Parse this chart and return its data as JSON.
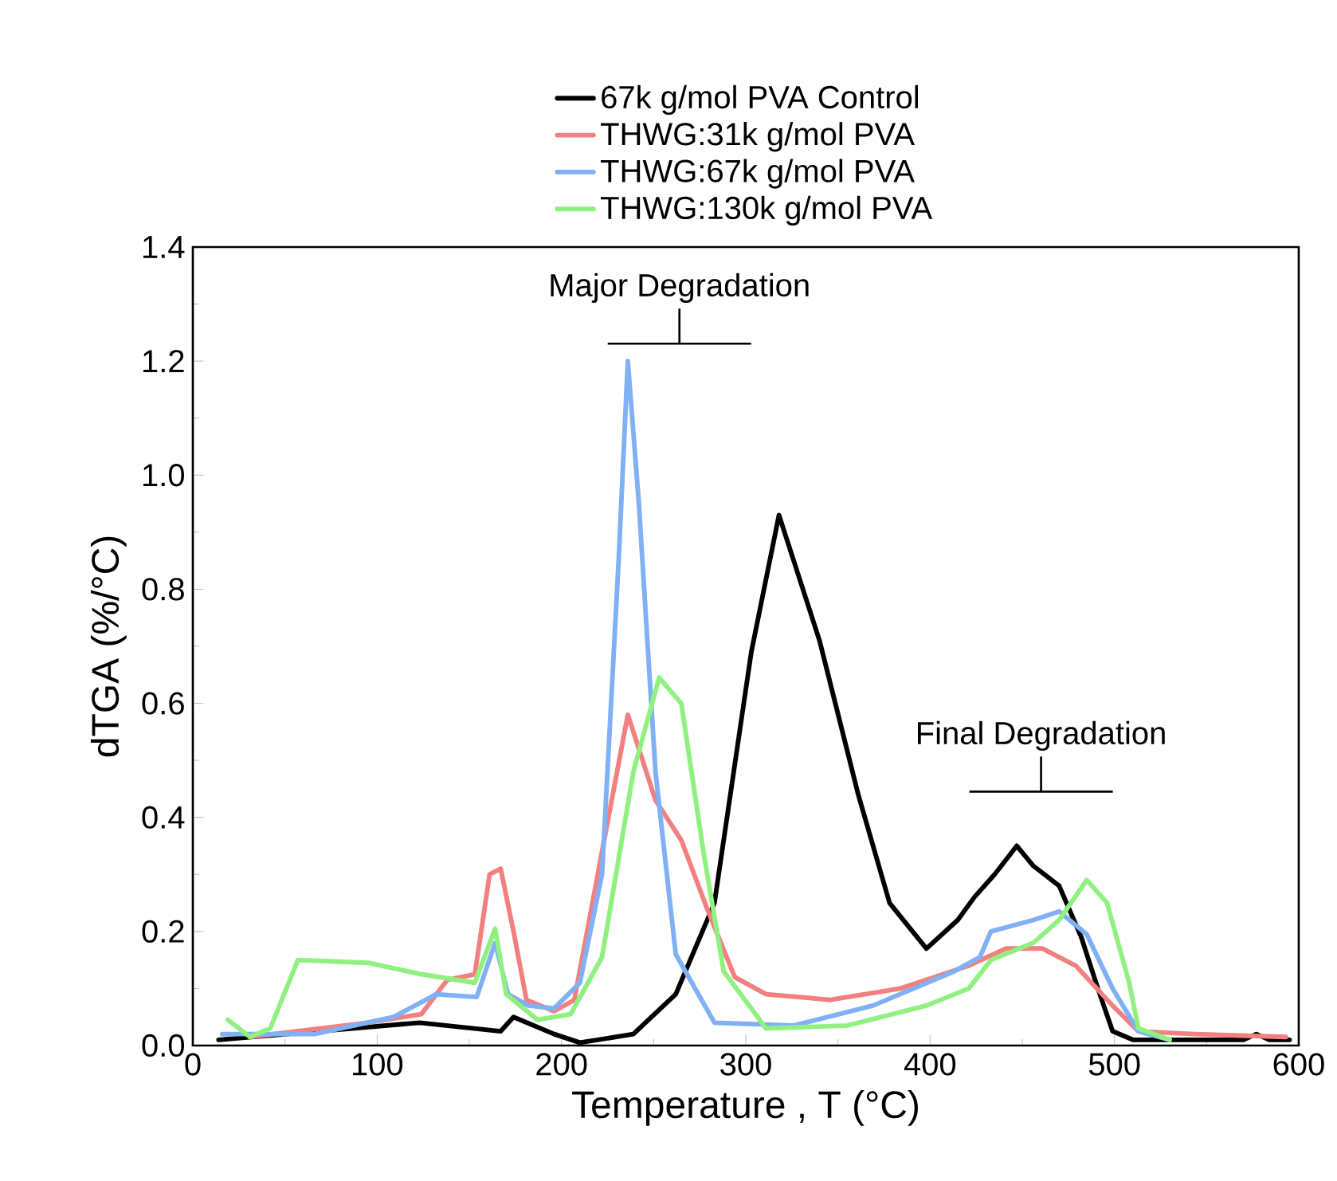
{
  "chart_data": {
    "type": "line",
    "xlabel": "Temperature , T (°C)",
    "ylabel": "dTGA (%/°C)",
    "xlim": [
      0,
      600
    ],
    "xticks": [
      0,
      100,
      200,
      300,
      400,
      500,
      600
    ],
    "ylim": [
      0,
      1.4
    ],
    "yticks": [
      {
        "value": 0,
        "label": "0.0"
      },
      {
        "value": 0.2,
        "label": "0.2"
      },
      {
        "value": 0.4,
        "label": "0.4"
      },
      {
        "value": 0.6,
        "label": "0.6"
      },
      {
        "value": 0.8,
        "label": "0.8"
      },
      {
        "value": 1.0,
        "label": "1.0"
      },
      {
        "value": 1.2,
        "label": "1.2"
      },
      {
        "value": 1.4,
        "label": "1.4"
      }
    ],
    "legend": "top",
    "grid": false,
    "marker": "none",
    "line_style": "solid",
    "annotations": [
      "Major Degradation",
      "Final Degradation"
    ],
    "series": [
      {
        "name": "67k g/mol PVA Control",
        "color": "#000000",
        "x": [
          14,
          123,
          167,
          174,
          196,
          210,
          239,
          262,
          283,
          303,
          318,
          340,
          361,
          378,
          398,
          415,
          424,
          435,
          447,
          456,
          470,
          482,
          491,
          499,
          510,
          570,
          577,
          584,
          595
        ],
        "values": [
          0.01,
          0.04,
          0.025,
          0.05,
          0.02,
          0.005,
          0.02,
          0.09,
          0.25,
          0.69,
          0.93,
          0.71,
          0.44,
          0.25,
          0.17,
          0.22,
          0.26,
          0.3,
          0.35,
          0.315,
          0.28,
          0.19,
          0.1,
          0.025,
          0.01,
          0.01,
          0.02,
          0.01,
          0.01
        ]
      },
      {
        "name": "THWG:31k g/mol PVA",
        "color": "#f28080",
        "x": [
          31,
          95,
          124,
          138,
          153,
          161,
          167,
          174,
          181,
          196,
          207,
          222,
          236,
          251,
          265,
          279,
          294,
          311,
          346,
          384,
          421,
          441,
          461,
          479,
          499,
          513,
          543,
          593
        ],
        "values": [
          0.015,
          0.04,
          0.055,
          0.115,
          0.125,
          0.3,
          0.31,
          0.2,
          0.08,
          0.06,
          0.08,
          0.34,
          0.58,
          0.43,
          0.36,
          0.24,
          0.12,
          0.09,
          0.08,
          0.1,
          0.14,
          0.17,
          0.17,
          0.14,
          0.07,
          0.025,
          0.02,
          0.015
        ]
      },
      {
        "name": "THWG:67k g/mol PVA",
        "color": "#80b0f5",
        "x": [
          16,
          66,
          109,
          132,
          154,
          164,
          171,
          182,
          196,
          210,
          222,
          231,
          236,
          242,
          251,
          262,
          283,
          326,
          369,
          413,
          427,
          433,
          456,
          470,
          485,
          499,
          513,
          530
        ],
        "values": [
          0.02,
          0.02,
          0.05,
          0.09,
          0.085,
          0.18,
          0.09,
          0.07,
          0.065,
          0.11,
          0.3,
          0.85,
          1.2,
          0.95,
          0.48,
          0.16,
          0.04,
          0.035,
          0.07,
          0.13,
          0.155,
          0.2,
          0.22,
          0.235,
          0.195,
          0.1,
          0.025,
          0.01
        ]
      },
      {
        "name": "THWG:130k g/mol PVA",
        "color": "#90f080",
        "x": [
          19,
          31,
          42,
          57,
          95,
          124,
          153,
          164,
          170,
          187,
          205,
          222,
          239,
          253,
          265,
          277,
          288,
          311,
          355,
          398,
          421,
          433,
          456,
          470,
          485,
          496,
          508,
          513,
          530
        ],
        "values": [
          0.045,
          0.015,
          0.03,
          0.15,
          0.145,
          0.125,
          0.11,
          0.205,
          0.09,
          0.045,
          0.055,
          0.155,
          0.48,
          0.645,
          0.6,
          0.34,
          0.13,
          0.03,
          0.035,
          0.07,
          0.1,
          0.15,
          0.18,
          0.22,
          0.29,
          0.25,
          0.11,
          0.03,
          0.01
        ]
      }
    ]
  }
}
